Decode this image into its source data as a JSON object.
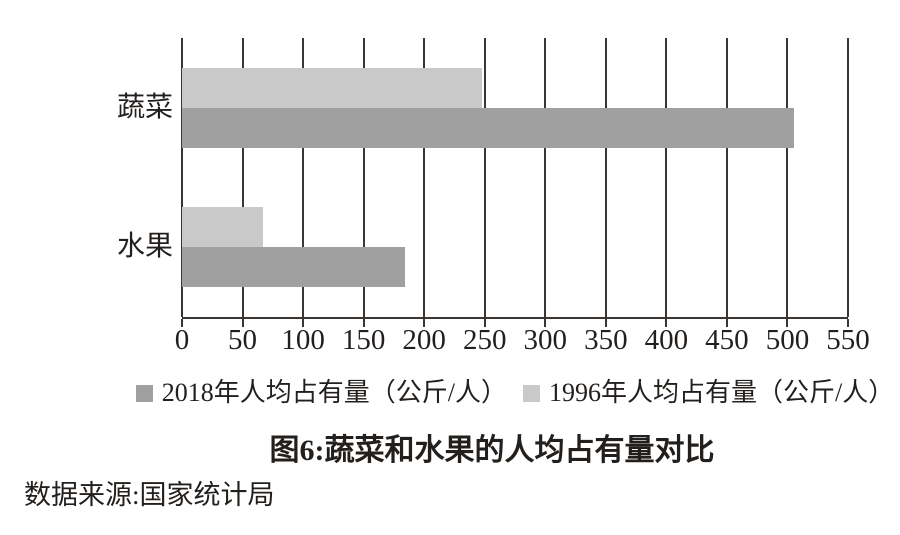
{
  "figure": {
    "title": "图6:蔬菜和水果的人均占有量对比",
    "source": "数据来源:国家统计局"
  },
  "chart_data": {
    "type": "bar",
    "orientation": "horizontal",
    "title": "图6:蔬菜和水果的人均占有量对比",
    "source": "数据来源:国家统计局",
    "categories": [
      "蔬菜",
      "水果"
    ],
    "series": [
      {
        "name": "2018年人均占有量（公斤/人）",
        "color": "#a0a0a0",
        "values": [
          505,
          184
        ]
      },
      {
        "name": "1996年人均占有量（公斤/人）",
        "color": "#c9c9c9",
        "values": [
          248,
          67
        ]
      }
    ],
    "xlim": [
      0,
      550
    ],
    "xticks": [
      0,
      50,
      100,
      150,
      200,
      250,
      300,
      350,
      400,
      450,
      500,
      550
    ],
    "grid": "vertical-gridlines",
    "legend_position": "bottom-center",
    "axis_color": "#3c3632",
    "text_color": "#231f1c",
    "background": "#ffffff"
  }
}
